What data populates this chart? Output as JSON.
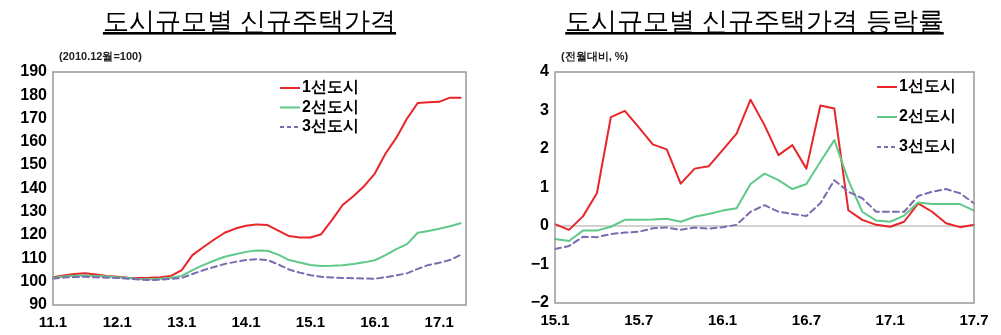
{
  "chart_data": [
    {
      "type": "line",
      "title": "도시규모별 신규주택가격",
      "ylabel": "(2010.12월=100)",
      "categories": [
        "11.1",
        null,
        null,
        null,
        null,
        null,
        "12.1",
        null,
        null,
        null,
        null,
        null,
        "13.1",
        null,
        null,
        null,
        null,
        null,
        "14.1",
        null,
        null,
        null,
        null,
        null,
        "15.1",
        null,
        null,
        null,
        null,
        null,
        "16.1",
        null,
        null,
        null,
        null,
        null,
        "17.1",
        null,
        null
      ],
      "series": [
        {
          "name": "1선도시",
          "color": "#e8262a",
          "line_style": "solid",
          "values": [
            101.9,
            102.7,
            103.3,
            103.6,
            103.1,
            102.4,
            102.1,
            101.7,
            101.6,
            101.7,
            101.9,
            102.5,
            105,
            111.4,
            114.8,
            118,
            121,
            122.8,
            124,
            124.6,
            124.3,
            121.9,
            119.6,
            119,
            119,
            120.4,
            126.4,
            132.9,
            136.7,
            141,
            146.4,
            155,
            161.7,
            170,
            176.7,
            177,
            177.2,
            179,
            179
          ]
        },
        {
          "name": "2선도시",
          "color": "#5fc98a",
          "line_style": "solid",
          "values": [
            101.6,
            102.2,
            102.6,
            102.7,
            102.5,
            102.2,
            101.9,
            101.6,
            101.2,
            101,
            101.3,
            101.7,
            102.5,
            105,
            107.1,
            109,
            110.7,
            111.8,
            112.8,
            113.4,
            113.3,
            111.6,
            109.3,
            108.2,
            107.2,
            106.7,
            106.8,
            107.1,
            107.6,
            108.3,
            109.2,
            111.4,
            114,
            116.1,
            121,
            121.8,
            122.7,
            123.8,
            125.1
          ]
        },
        {
          "name": "3선도시",
          "color": "#7b6bb0",
          "line_style": "dashed",
          "values": [
            101.3,
            101.8,
            102,
            102.1,
            101.9,
            101.7,
            101.6,
            101.3,
            100.9,
            100.7,
            100.9,
            101.2,
            101.6,
            103.3,
            104.9,
            106.3,
            107.6,
            108.5,
            109.3,
            109.7,
            109.3,
            107.4,
            105.2,
            103.9,
            102.8,
            102.1,
            101.8,
            101.6,
            101.5,
            101.4,
            101.3,
            101.9,
            102.7,
            103.6,
            105.5,
            107.2,
            108.1,
            109.3,
            111.5
          ]
        }
      ],
      "ylim": [
        90,
        190
      ],
      "yticks": [
        90,
        100,
        110,
        120,
        130,
        140,
        150,
        160,
        170,
        180,
        190
      ],
      "grid": false,
      "legend": "top right"
    },
    {
      "type": "line",
      "title": "도시규모별 신규주택가격 등락률",
      "ylabel": "(전월대비, %)",
      "categories": [
        "15.1",
        null,
        null,
        null,
        null,
        null,
        "15.7",
        null,
        null,
        null,
        null,
        null,
        "16.1",
        null,
        null,
        null,
        null,
        null,
        "16.7",
        null,
        null,
        null,
        null,
        null,
        "17.1",
        null,
        null,
        null,
        null,
        null,
        "17.7"
      ],
      "series": [
        {
          "name": "1선도시",
          "color": "#e8262a",
          "line_style": "solid",
          "values": [
            0.05,
            -0.1,
            0.25,
            0.85,
            2.83,
            2.99,
            2.56,
            2.12,
            1.99,
            1.1,
            1.49,
            1.55,
            1.97,
            2.4,
            3.28,
            2.62,
            1.84,
            2.1,
            1.49,
            3.13,
            3.05,
            0.41,
            0.16,
            0.03,
            -0.02,
            0.11,
            0.59,
            0.37,
            0.07,
            -0.03,
            0.03
          ]
        },
        {
          "name": "2선도시",
          "color": "#5fc98a",
          "line_style": "solid",
          "values": [
            -0.34,
            -0.39,
            -0.12,
            -0.12,
            -0.02,
            0.16,
            0.16,
            0.17,
            0.19,
            0.11,
            0.24,
            0.31,
            0.4,
            0.46,
            1.09,
            1.36,
            1.19,
            0.96,
            1.09,
            1.67,
            2.23,
            1.19,
            0.37,
            0.14,
            0.11,
            0.27,
            0.61,
            0.57,
            0.57,
            0.57,
            0.4
          ]
        },
        {
          "name": "3선도시",
          "color": "#7b6bb0",
          "line_style": "dashed",
          "values": [
            -0.6,
            -0.52,
            -0.28,
            -0.29,
            -0.21,
            -0.17,
            -0.15,
            -0.06,
            -0.04,
            -0.1,
            -0.04,
            -0.07,
            -0.03,
            0.03,
            0.37,
            0.54,
            0.37,
            0.31,
            0.26,
            0.59,
            1.19,
            0.89,
            0.72,
            0.37,
            0.37,
            0.37,
            0.78,
            0.89,
            0.96,
            0.85,
            0.59
          ]
        }
      ],
      "ylim": [
        -2,
        4
      ],
      "yticks": [
        -2,
        -1,
        0,
        1,
        2,
        3,
        4
      ],
      "ref_lines": [
        {
          "axis": "y",
          "value": 0,
          "color": "#a6a6a6"
        }
      ],
      "grid": false,
      "legend": "top right"
    }
  ]
}
